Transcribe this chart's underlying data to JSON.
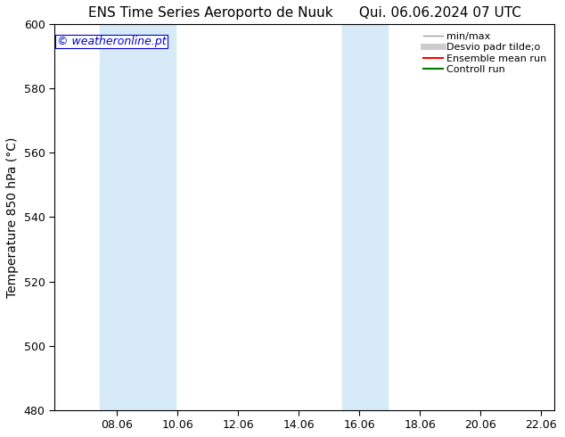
{
  "title_left": "ENS Time Series Aeroporto de Nuuk",
  "title_right": "Qui. 06.06.2024 07 UTC",
  "ylabel": "Temperature 850 hPa (°C)",
  "watermark": "© weatheronline.pt",
  "watermark_color": "#0000cc",
  "ylim": [
    480,
    600
  ],
  "yticks": [
    480,
    500,
    520,
    540,
    560,
    580,
    600
  ],
  "xlim_start": 6.0,
  "xlim_end": 22.5,
  "xticks": [
    8.06,
    10.06,
    12.06,
    14.06,
    16.06,
    18.06,
    20.06,
    22.06
  ],
  "xtick_labels": [
    "08.06",
    "10.06",
    "12.06",
    "14.06",
    "16.06",
    "18.06",
    "20.06",
    "22.06"
  ],
  "shaded_regions": [
    {
      "x_start": 7.5,
      "x_end": 10.0,
      "color": "#d6eaf8"
    },
    {
      "x_start": 15.5,
      "x_end": 17.0,
      "color": "#d6eaf8"
    }
  ],
  "legend_entries": [
    {
      "label": "min/max",
      "color": "#999999",
      "lw": 1.0
    },
    {
      "label": "Desvio padr tilde;o",
      "color": "#cccccc",
      "lw": 5
    },
    {
      "label": "Ensemble mean run",
      "color": "#ff0000",
      "lw": 1.5
    },
    {
      "label": "Controll run",
      "color": "#007700",
      "lw": 1.5
    }
  ],
  "bg_color": "#ffffff",
  "title_fontsize": 11,
  "axis_fontsize": 10,
  "tick_fontsize": 9,
  "legend_fontsize": 8
}
